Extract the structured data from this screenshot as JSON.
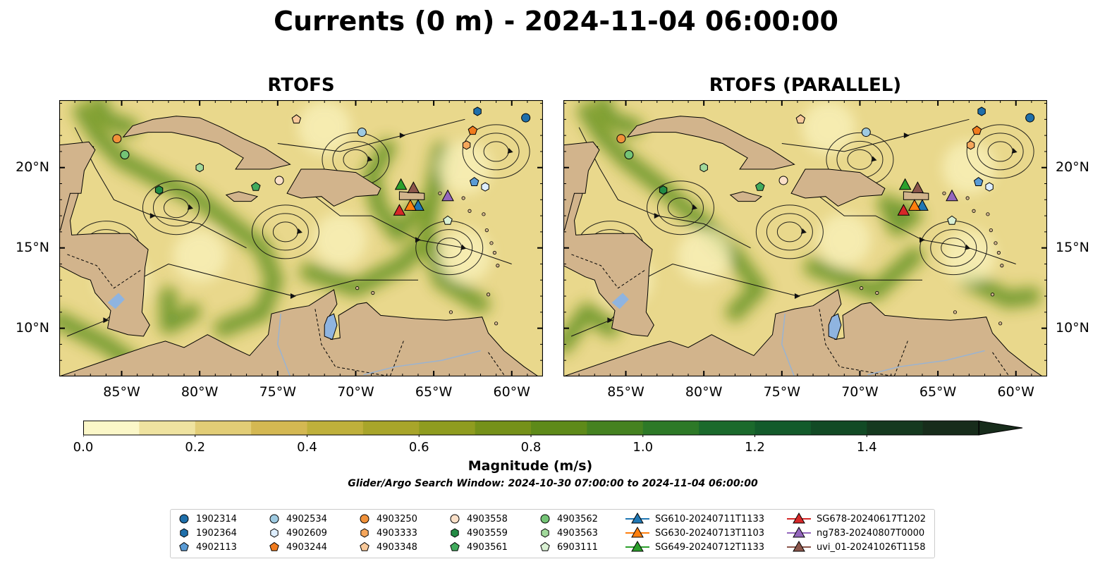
{
  "title": "Currents (0 m) - 2024-11-04 06:00:00",
  "panels": [
    {
      "title": "RTOFS"
    },
    {
      "title": "RTOFS (PARALLEL)"
    }
  ],
  "map": {
    "lon_range": [
      -89,
      -58
    ],
    "lat_range": [
      7,
      24.2
    ],
    "lon_ticks": [
      "85°W",
      "80°W",
      "75°W",
      "70°W",
      "65°W",
      "60°W"
    ],
    "lat_ticks": [
      "20°N",
      "15°N",
      "10°N"
    ],
    "land_color": "#d2b48c",
    "lake_color": "#8fb4e0"
  },
  "colorbar": {
    "label": "Magnitude (m/s)",
    "ticks": [
      "0.0",
      "0.2",
      "0.4",
      "0.6",
      "0.8",
      "1.0",
      "1.2",
      "1.4"
    ],
    "range": [
      0,
      1.6
    ],
    "extend": "max",
    "colors": [
      "#fbf7c8",
      "#efe3a0",
      "#e2cd76",
      "#d4b852",
      "#bfb03b",
      "#a8a52a",
      "#8f9c1f",
      "#759119",
      "#5e8a19",
      "#458220",
      "#2d7927",
      "#1b6a2c",
      "#135b2b",
      "#124a25",
      "#15391f",
      "#172c1b"
    ]
  },
  "window_note": "Glider/Argo Search Window: 2024-10-30 07:00:00 to 2024-11-04 06:00:00",
  "legend": [
    {
      "label": "1902314",
      "marker": "circle",
      "color": "#1f6faa"
    },
    {
      "label": "1902364",
      "marker": "hexagon",
      "color": "#1f6faa"
    },
    {
      "label": "4902113",
      "marker": "pentagon",
      "color": "#5a9bd5"
    },
    {
      "label": "4902534",
      "marker": "circle",
      "color": "#9ecae1"
    },
    {
      "label": "4902609",
      "marker": "hexagon",
      "color": "#ddeeff"
    },
    {
      "label": "4903244",
      "marker": "pentagon",
      "color": "#f07b1e"
    },
    {
      "label": "4903250",
      "marker": "circle",
      "color": "#f0913a"
    },
    {
      "label": "4903333",
      "marker": "hexagon",
      "color": "#f5a65b"
    },
    {
      "label": "4903348",
      "marker": "pentagon",
      "color": "#f8c99a"
    },
    {
      "label": "4903558",
      "marker": "circle",
      "color": "#fbe0c8"
    },
    {
      "label": "4903559",
      "marker": "hexagon",
      "color": "#238b45"
    },
    {
      "label": "4903561",
      "marker": "pentagon",
      "color": "#41ab5d"
    },
    {
      "label": "4903562",
      "marker": "circle",
      "color": "#74c476"
    },
    {
      "label": "4903563",
      "marker": "hexagon",
      "color": "#a1d99b"
    },
    {
      "label": "6903111",
      "marker": "pentagon",
      "color": "#d9f0d3"
    },
    {
      "label": "SG610-20240711T1133",
      "marker": "triangle-line",
      "color": "#1f77b4"
    },
    {
      "label": "SG630-20240713T1103",
      "marker": "triangle-line",
      "color": "#ff7f0e"
    },
    {
      "label": "SG649-20240712T1133",
      "marker": "triangle-line",
      "color": "#2ca02c"
    },
    {
      "label": "SG678-20240617T1202",
      "marker": "triangle-line",
      "color": "#d62728"
    },
    {
      "label": "ng783-20240807T0000",
      "marker": "triangle-line",
      "color": "#9467bd"
    },
    {
      "label": "uvi_01-20241026T1158",
      "marker": "triangle-line",
      "color": "#8c564b"
    }
  ],
  "markers": [
    {
      "id": "1902314",
      "lon": -59.1,
      "lat": 23.1,
      "marker": "circle",
      "color": "#1f6faa"
    },
    {
      "id": "1902364",
      "lon": -62.2,
      "lat": 23.5,
      "marker": "hexagon",
      "color": "#1f6faa"
    },
    {
      "id": "4902113",
      "lon": -62.4,
      "lat": 19.1,
      "marker": "pentagon",
      "color": "#5a9bd5"
    },
    {
      "id": "4902534",
      "lon": -69.6,
      "lat": 22.2,
      "marker": "circle",
      "color": "#9ecae1"
    },
    {
      "id": "4902609",
      "lon": -61.7,
      "lat": 18.8,
      "marker": "hexagon",
      "color": "#ddeeff"
    },
    {
      "id": "4903244",
      "lon": -62.5,
      "lat": 22.3,
      "marker": "pentagon",
      "color": "#f07b1e"
    },
    {
      "id": "4903250",
      "lon": -85.3,
      "lat": 21.8,
      "marker": "circle",
      "color": "#f0913a"
    },
    {
      "id": "4903333",
      "lon": -62.9,
      "lat": 21.4,
      "marker": "hexagon",
      "color": "#f5a65b"
    },
    {
      "id": "4903348",
      "lon": -73.8,
      "lat": 23.0,
      "marker": "pentagon",
      "color": "#f8c99a"
    },
    {
      "id": "4903558",
      "lon": -74.9,
      "lat": 19.2,
      "marker": "circle",
      "color": "#fbe0c8"
    },
    {
      "id": "4903559",
      "lon": -82.6,
      "lat": 18.6,
      "marker": "hexagon",
      "color": "#238b45"
    },
    {
      "id": "4903561",
      "lon": -76.4,
      "lat": 18.8,
      "marker": "pentagon",
      "color": "#41ab5d"
    },
    {
      "id": "4903562",
      "lon": -84.8,
      "lat": 20.8,
      "marker": "circle",
      "color": "#74c476"
    },
    {
      "id": "4903563",
      "lon": -80.0,
      "lat": 20.0,
      "marker": "hexagon",
      "color": "#a1d99b"
    },
    {
      "id": "6903111",
      "lon": -64.1,
      "lat": 16.7,
      "marker": "pentagon",
      "color": "#d9f0d3"
    },
    {
      "id": "SG610-20240711T1133",
      "lon": -66.0,
      "lat": 17.6,
      "marker": "triangle",
      "color": "#1f77b4"
    },
    {
      "id": "SG630-20240713T1103",
      "lon": -66.5,
      "lat": 17.6,
      "marker": "triangle",
      "color": "#ff7f0e"
    },
    {
      "id": "SG649-20240712T1133",
      "lon": -67.1,
      "lat": 18.9,
      "marker": "triangle",
      "color": "#2ca02c"
    },
    {
      "id": "SG678-20240617T1202",
      "lon": -67.2,
      "lat": 17.3,
      "marker": "triangle",
      "color": "#d62728"
    },
    {
      "id": "ng783-20240807T0000",
      "lon": -64.1,
      "lat": 18.2,
      "marker": "triangle",
      "color": "#9467bd"
    },
    {
      "id": "uvi_01-20241026T1158",
      "lon": -66.3,
      "lat": 18.7,
      "marker": "triangle",
      "color": "#8c564b"
    }
  ]
}
